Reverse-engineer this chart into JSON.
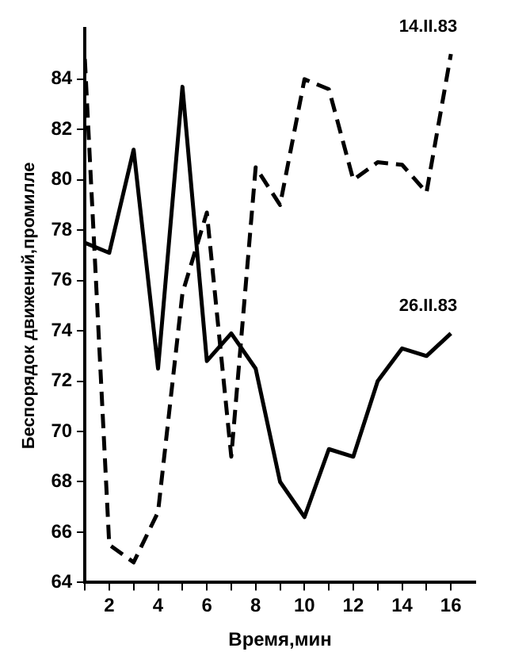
{
  "chart_data": {
    "type": "line",
    "xlabel": "Время,мин",
    "ylabel": "Беспорядок движений,промилле",
    "x": [
      1,
      2,
      3,
      4,
      5,
      6,
      7,
      8,
      9,
      10,
      11,
      12,
      13,
      14,
      15,
      16
    ],
    "series": [
      {
        "name": "14.II.83",
        "color": "#000000",
        "line_style": "dashed",
        "values": [
          84.8,
          65.5,
          64.8,
          66.8,
          75.5,
          78.7,
          69,
          80.5,
          79,
          84,
          83.6,
          80,
          80.7,
          80.6,
          79.5,
          85
        ]
      },
      {
        "name": "26.II.83",
        "color": "#000000",
        "line_style": "solid",
        "values": [
          77.5,
          77.1,
          81.2,
          72.5,
          83.7,
          72.8,
          73.9,
          72.5,
          68,
          66.6,
          69.3,
          69,
          72,
          73.3,
          73,
          73.9
        ]
      }
    ],
    "xlim": [
      1,
      17
    ],
    "xticks": [
      {
        "value": 1,
        "label": null
      },
      2,
      {
        "value": 3,
        "label": null
      },
      4,
      {
        "value": 5,
        "label": null
      },
      6,
      {
        "value": 7,
        "label": null
      },
      8,
      {
        "value": 9,
        "label": null
      },
      10,
      {
        "value": 11,
        "label": null
      },
      12,
      {
        "value": 13,
        "label": null
      },
      14,
      {
        "value": 15,
        "label": null
      },
      16
    ],
    "ylim": [
      64,
      86
    ],
    "yticks": [
      64,
      66,
      68,
      70,
      72,
      74,
      76,
      78,
      80,
      82,
      84
    ],
    "grid": false,
    "legend": false,
    "marker": "none"
  }
}
